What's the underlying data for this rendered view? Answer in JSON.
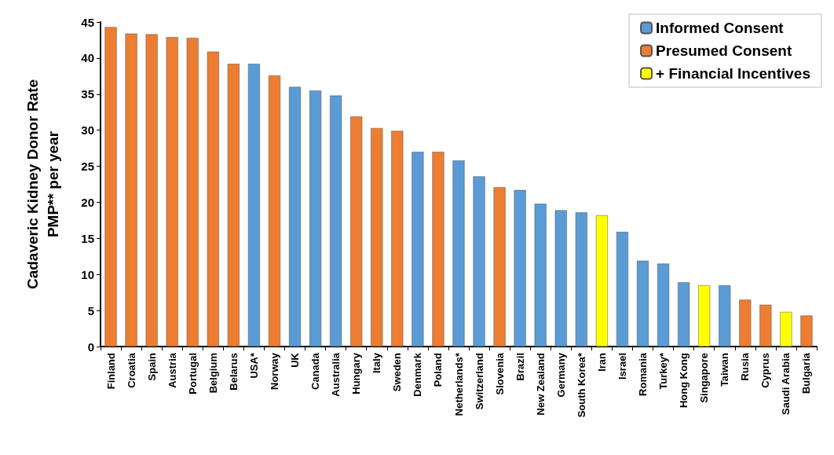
{
  "chart_data": {
    "type": "bar",
    "ylabel": "Cadaveric Kidney Donor Rate\nPMP** per year",
    "categories": [
      "Finland",
      "Croatia",
      "Spain",
      "Austria",
      "Portugal",
      "Belgium",
      "Belarus",
      "USA*",
      "Norway",
      "UK",
      "Canada",
      "Australia",
      "Hungary",
      "Italy",
      "Sweden",
      "Denmark",
      "Poland",
      "Netherlands*",
      "Switzerland",
      "Slovenia",
      "Brazil",
      "New Zealand",
      "Germany",
      "South Korea*",
      "Iran",
      "Israel",
      "Romania",
      "Turkey*",
      "Hong Kong",
      "Singapore",
      "Taiwan",
      "Rusia",
      "Cyprus",
      "Saudi Arabia",
      "Bulgaria"
    ],
    "series": [
      {
        "name": "Informed Consent",
        "color": "#5b9bd5",
        "values": [
          null,
          null,
          null,
          null,
          null,
          null,
          null,
          39.2,
          null,
          36.0,
          35.5,
          34.8,
          null,
          null,
          null,
          27.0,
          null,
          25.8,
          23.6,
          null,
          21.7,
          19.8,
          18.9,
          18.6,
          null,
          15.9,
          11.9,
          11.5,
          8.9,
          null,
          8.5,
          null,
          null,
          null,
          null
        ]
      },
      {
        "name": "Presumed Consent",
        "color": "#ed7d31",
        "values": [
          44.3,
          43.4,
          43.3,
          42.9,
          42.8,
          40.9,
          39.2,
          null,
          37.6,
          null,
          null,
          null,
          31.9,
          30.3,
          29.9,
          null,
          27.0,
          null,
          null,
          22.1,
          null,
          null,
          null,
          null,
          null,
          null,
          null,
          null,
          null,
          null,
          null,
          6.5,
          5.8,
          null,
          4.3
        ]
      },
      {
        "name": "+ Financial Incentives",
        "color": "#ffff00",
        "values": [
          null,
          null,
          null,
          null,
          null,
          null,
          null,
          null,
          null,
          null,
          null,
          null,
          null,
          null,
          null,
          null,
          null,
          null,
          null,
          null,
          null,
          null,
          null,
          null,
          18.2,
          null,
          null,
          null,
          null,
          8.5,
          null,
          null,
          null,
          4.8,
          null
        ]
      }
    ],
    "ylim": [
      0,
      45
    ],
    "yticks": [
      0,
      5,
      10,
      15,
      20,
      25,
      30,
      35,
      40,
      45
    ],
    "grid": false,
    "legend": "top right"
  }
}
